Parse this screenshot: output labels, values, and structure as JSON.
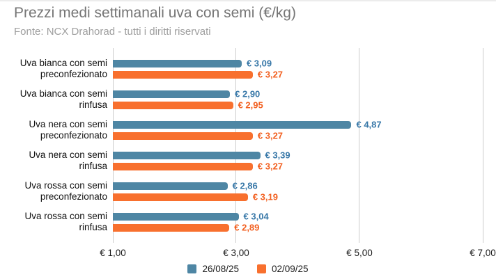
{
  "header": {
    "title": "Prezzi medi settimanali uva con semi (€/kg)",
    "subtitle": "Fonte: NCX Drahorad - tutti i diritti riservati"
  },
  "colors": {
    "series": [
      {
        "bar": "#4E86A4",
        "label": "#3878A8"
      },
      {
        "bar": "#F8702E",
        "label": "#F25F1F"
      }
    ],
    "gridline": "#CCCCCC",
    "title_text": "#757575",
    "subtitle_text": "#9E9E9E",
    "category_text": "#111111",
    "axis_text": "#1A1A1A",
    "legend_text": "#1A1A1A"
  },
  "chart_data": {
    "type": "bar",
    "orientation": "horizontal",
    "title": "Prezzi medi settimanali uva con semi (€/kg)",
    "subtitle": "Fonte: NCX Drahorad - tutti i diritti riservati",
    "categories": [
      "Uva bianca con semi preconfezionato",
      "Uva bianca con semi rinfusa",
      "Uva nera con semi preconfezionato",
      "Uva nera con semi rinfusa",
      "Uva rossa con semi preconfezionato",
      "Uva rossa con semi rinfusa"
    ],
    "category_lines": [
      [
        "Uva bianca con semi",
        "preconfezionato"
      ],
      [
        "Uva bianca con semi",
        "rinfusa"
      ],
      [
        "Uva nera con semi",
        "preconfezionato"
      ],
      [
        "Uva nera con semi",
        "rinfusa"
      ],
      [
        "Uva rossa con semi",
        "preconfezionato"
      ],
      [
        "Uva rossa con semi",
        "rinfusa"
      ]
    ],
    "series": [
      {
        "name": "26/08/25",
        "values": [
          3.09,
          2.9,
          4.87,
          3.39,
          2.86,
          3.04
        ],
        "labels": [
          "€ 3,09",
          "€ 2,90",
          "€ 4,87",
          "€ 3,39",
          "€ 2,86",
          "€ 3,04"
        ]
      },
      {
        "name": "02/09/25",
        "values": [
          3.27,
          2.95,
          3.27,
          3.27,
          3.19,
          2.89
        ],
        "labels": [
          "€ 3,27",
          "€ 2,95",
          "€ 3,27",
          "€ 3,27",
          "€ 3,19",
          "€ 2,89"
        ]
      }
    ],
    "x_axis": {
      "min": 1,
      "max": 7,
      "tick_values": [
        1,
        3,
        5,
        7
      ],
      "tick_labels": [
        "€ 1,00",
        "€ 3,00",
        "€ 5,00",
        "€ 7,00"
      ]
    },
    "legend": {
      "position": "bottom",
      "entries": [
        "26/08/25",
        "02/09/25"
      ]
    },
    "grid": true,
    "ylim_note": "x axis starts at 1.00, bars measured from € 1,00 baseline"
  }
}
